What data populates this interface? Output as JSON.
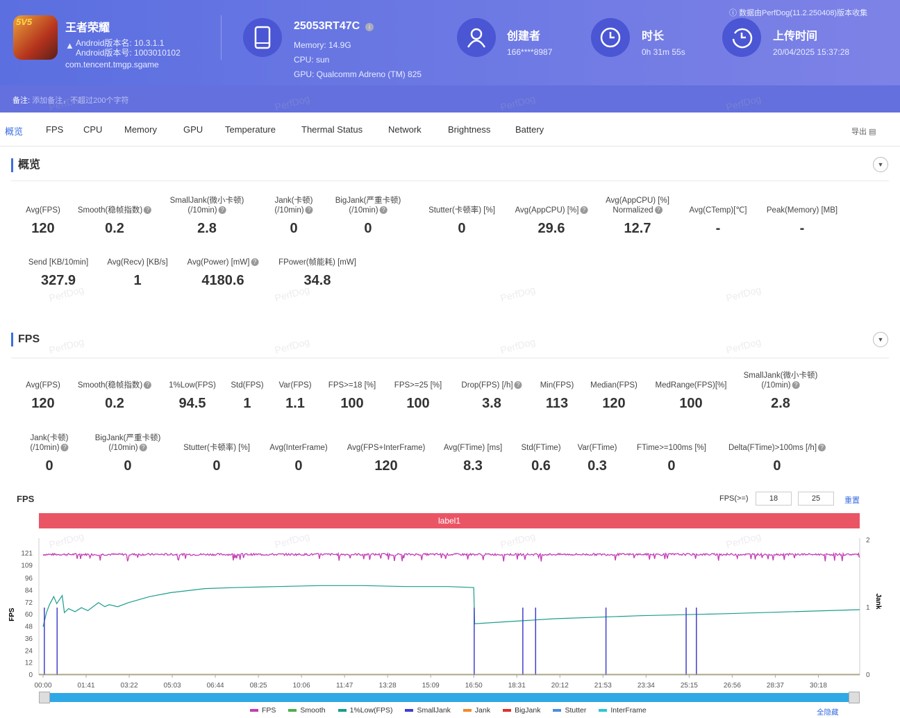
{
  "header": {
    "app_name": "王者荣耀",
    "version_name": "Android版本名: 10.3.1.1",
    "version_code": "Android版本号: 1003010102",
    "package": "com.tencent.tmgp.sgame",
    "app_icon_text": "5V5",
    "device": "25053RT47C",
    "memory": "Memory: 14.9G",
    "cpu": "CPU: sun",
    "gpu": "GPU: Qualcomm Adreno (TM) 825",
    "creator_label": "创建者",
    "creator": "166****8987",
    "duration_label": "时长",
    "duration": "0h 31m 55s",
    "upload_label": "上传时间",
    "upload_time": "20/04/2025 15:37:28",
    "notice": "数据由PerfDog(11.2.250408)版本收集",
    "note_label": "备注:",
    "note_placeholder": "添加备注，不超过200个字符"
  },
  "tabs": [
    "概览",
    "FPS",
    "CPU",
    "Memory",
    "GPU",
    "Temperature",
    "Thermal Status",
    "Network",
    "Brightness",
    "Battery"
  ],
  "export_label": "导出",
  "overview": {
    "title": "概览",
    "metrics": [
      {
        "label": "Avg(FPS)",
        "value": "120"
      },
      {
        "label": "Smooth(稳帧指数)",
        "value": "0.2",
        "help": true
      },
      {
        "label": "SmallJank(微小卡顿)",
        "label2": "(/10min)",
        "value": "2.8",
        "help": true
      },
      {
        "label": "Jank(卡顿)",
        "label2": "(/10min)",
        "value": "0",
        "help": true
      },
      {
        "label": "BigJank(严重卡顿)",
        "label2": "(/10min)",
        "value": "0",
        "help": true
      },
      {
        "label": "Stutter(卡顿率) [%]",
        "value": "0"
      },
      {
        "label": "Avg(AppCPU) [%]",
        "value": "29.6",
        "help": true
      },
      {
        "label": "Avg(AppCPU) [%]",
        "label2": "Normalized",
        "value": "12.7",
        "help": true
      },
      {
        "label": "Avg(CTemp)[℃]",
        "value": "-"
      },
      {
        "label": "Peak(Memory) [MB]",
        "value": "-"
      },
      {
        "label": "Send [KB/10min]",
        "value": "327.9"
      },
      {
        "label": "Avg(Recv) [KB/s]",
        "value": "1"
      },
      {
        "label": "Avg(Power) [mW]",
        "value": "4180.6",
        "help": true
      },
      {
        "label": "FPower(帧能耗) [mW]",
        "value": "34.8"
      }
    ]
  },
  "fps": {
    "title": "FPS",
    "metrics": [
      {
        "label": "Avg(FPS)",
        "value": "120"
      },
      {
        "label": "Smooth(稳帧指数)",
        "value": "0.2",
        "help": true
      },
      {
        "label": "1%Low(FPS)",
        "value": "94.5"
      },
      {
        "label": "Std(FPS)",
        "value": "1"
      },
      {
        "label": "Var(FPS)",
        "value": "1.1"
      },
      {
        "label": "FPS>=18 [%]",
        "value": "100"
      },
      {
        "label": "FPS>=25 [%]",
        "value": "100"
      },
      {
        "label": "Drop(FPS) [/h]",
        "value": "3.8",
        "help": true
      },
      {
        "label": "Min(FPS)",
        "value": "113"
      },
      {
        "label": "Median(FPS)",
        "value": "120"
      },
      {
        "label": "MedRange(FPS)[%]",
        "value": "100"
      },
      {
        "label": "SmallJank(微小卡顿)",
        "label2": "(/10min)",
        "value": "2.8",
        "help": true
      },
      {
        "label": "Jank(卡顿)",
        "label2": "(/10min)",
        "value": "0",
        "help": true
      },
      {
        "label": "BigJank(严重卡顿)",
        "label2": "(/10min)",
        "value": "0",
        "help": true
      },
      {
        "label": "Stutter(卡顿率) [%]",
        "value": "0"
      },
      {
        "label": "Avg(InterFrame)",
        "value": "0"
      },
      {
        "label": "Avg(FPS+InterFrame)",
        "value": "120"
      },
      {
        "label": "Avg(FTime) [ms]",
        "value": "8.3"
      },
      {
        "label": "Std(FTime)",
        "value": "0.6"
      },
      {
        "label": "Var(FTime)",
        "value": "0.3"
      },
      {
        "label": "FTime>=100ms [%]",
        "value": "0"
      },
      {
        "label": "Delta(FTime)>100ms [/h]",
        "value": "0",
        "help": true
      }
    ]
  },
  "chart_controls": {
    "title": "FPS",
    "threshold_label": "FPS(>=)",
    "threshold1": "18",
    "threshold2": "25",
    "reset": "重置",
    "hide_all": "全隐藏",
    "label_band": "label1"
  },
  "watermark": "PerfDog",
  "chart_data": {
    "type": "line",
    "title": "FPS",
    "ylabel": "FPS",
    "y2label": "Jank",
    "ylim": [
      0,
      121
    ],
    "y2lim": [
      0,
      2
    ],
    "yticks": [
      0,
      12,
      24,
      36,
      48,
      60,
      72,
      84,
      96,
      109,
      121
    ],
    "y2ticks": [
      0,
      1,
      2
    ],
    "xticks": [
      "00:00",
      "01:41",
      "03:22",
      "05:03",
      "06:44",
      "08:25",
      "10:06",
      "11:47",
      "13:28",
      "15:09",
      "16:50",
      "18:31",
      "20:12",
      "21:53",
      "23:34",
      "25:15",
      "26:56",
      "28:37",
      "30:18"
    ],
    "xlim_seconds": [
      0,
      1915
    ],
    "legend": [
      {
        "name": "FPS",
        "color": "#c23cb5"
      },
      {
        "name": "Smooth",
        "color": "#4caf50"
      },
      {
        "name": "1%Low(FPS)",
        "color": "#1a9c8c"
      },
      {
        "name": "SmallJank",
        "color": "#3f3fcf"
      },
      {
        "name": "Jank",
        "color": "#f08a2c"
      },
      {
        "name": "BigJank",
        "color": "#d9342b"
      },
      {
        "name": "Stutter",
        "color": "#4a8ee0"
      },
      {
        "name": "InterFrame",
        "color": "#2ec5d8"
      }
    ],
    "series": [
      {
        "name": "FPS",
        "approx": "constant ~120 with occasional dips to 113-119",
        "value": 120
      },
      {
        "name": "1%Low(FPS)",
        "points": [
          [
            0,
            48
          ],
          [
            8,
            62
          ],
          [
            15,
            70
          ],
          [
            25,
            78
          ],
          [
            32,
            71
          ],
          [
            45,
            79
          ],
          [
            50,
            62
          ],
          [
            60,
            66
          ],
          [
            75,
            63
          ],
          [
            90,
            67
          ],
          [
            105,
            64
          ],
          [
            130,
            72
          ],
          [
            145,
            68
          ],
          [
            155,
            70
          ],
          [
            175,
            68
          ],
          [
            200,
            72
          ],
          [
            250,
            78
          ],
          [
            300,
            82
          ],
          [
            380,
            86
          ],
          [
            450,
            87
          ],
          [
            550,
            88
          ],
          [
            650,
            89
          ],
          [
            750,
            89
          ],
          [
            850,
            88
          ],
          [
            950,
            88
          ],
          [
            1010,
            87
          ],
          [
            1012,
            51
          ],
          [
            1200,
            56
          ],
          [
            1400,
            59
          ],
          [
            1600,
            61
          ],
          [
            1915,
            65
          ]
        ]
      },
      {
        "name": "SmallJank",
        "spikes_seconds": [
          3,
          33,
          1011,
          1125,
          1155,
          1320,
          1508,
          1532
        ]
      }
    ]
  }
}
